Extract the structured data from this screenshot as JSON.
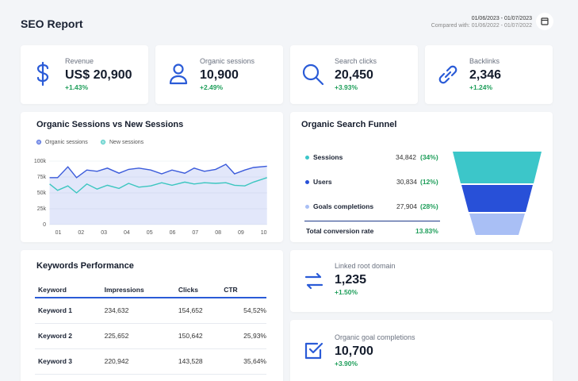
{
  "header": {
    "title": "SEO Report",
    "date_range": "01/06/2023 - 01/07/2023",
    "compared": "Compared with: 01/06/2022 - 01/07/2022"
  },
  "kpis": [
    {
      "label": "Revenue",
      "value": "US$ 20,900",
      "change": "+1.43%"
    },
    {
      "label": "Organic sessions",
      "value": "10,900",
      "change": "+2.49%"
    },
    {
      "label": "Search clicks",
      "value": "20,450",
      "change": "+3.93%"
    },
    {
      "label": "Backlinks",
      "value": "2,346",
      "change": "+1.24%"
    }
  ],
  "chart_data": {
    "type": "line",
    "title": "Organic Sessions vs New Sessions",
    "x": [
      0.62,
      0.97,
      1.42,
      1.8,
      2.25,
      2.7,
      3.15,
      3.66,
      4.08,
      4.53,
      5.05,
      5.53,
      5.98,
      6.54,
      6.95,
      7.4,
      7.89,
      8.34,
      8.72,
      9.17,
      9.55,
      10.14
    ],
    "series": [
      {
        "name": "Organic sessions",
        "color": "#3b5bdb",
        "area": true,
        "values": [
          74000,
          74000,
          91000,
          74000,
          86000,
          84000,
          89000,
          81000,
          87000,
          89000,
          86000,
          80000,
          86000,
          81000,
          89000,
          84000,
          87000,
          95000,
          80000,
          86000,
          90000,
          92000
        ]
      },
      {
        "name": "New sessions",
        "color": "#3cc6c0",
        "values": [
          64000,
          54000,
          61000,
          50000,
          64000,
          56000,
          62000,
          57000,
          65000,
          59000,
          61000,
          66000,
          62000,
          67000,
          64000,
          66000,
          65000,
          66000,
          62000,
          61000,
          67000,
          74000
        ]
      }
    ],
    "xlim": [
      0.6,
      10.15
    ],
    "xticks": [
      {
        "value": 1,
        "label": "01"
      },
      {
        "value": 2,
        "label": "02"
      },
      {
        "value": 3,
        "label": "03"
      },
      {
        "value": 4,
        "label": "04"
      },
      {
        "value": 5,
        "label": "05"
      },
      {
        "value": 6,
        "label": "06"
      },
      {
        "value": 7,
        "label": "07"
      },
      {
        "value": 8,
        "label": "08"
      },
      {
        "value": 9,
        "label": "09"
      },
      {
        "value": 10,
        "label": "10"
      }
    ],
    "ylim": [
      0,
      100000
    ],
    "yticks": [
      0,
      {
        "value": 25000,
        "label": "25k"
      },
      {
        "value": 50000,
        "label": "50k"
      },
      {
        "value": 75000,
        "label": "75k"
      },
      {
        "value": 100000,
        "label": "100k"
      }
    ],
    "grid": true
  },
  "funnel": {
    "title": "Organic Search Funnel",
    "stages": [
      {
        "label": "Sessions",
        "value": "34,842",
        "percent": "(34%)",
        "color": "#3cc6c9"
      },
      {
        "label": "Users",
        "value": "30,834",
        "percent": "(12%)",
        "color": "#2850d8"
      },
      {
        "label": "Goals completions",
        "value": "27,904",
        "percent": "(28%)",
        "color": "#a9bff5"
      }
    ],
    "total_label": "Total conversion rate",
    "total_value": "13.83%"
  },
  "table": {
    "title": "Keywords Performance",
    "columns": [
      "Keyword",
      "Impressions",
      "Clicks",
      "CTR"
    ],
    "rows": [
      [
        "Keyword 1",
        "234,632",
        "154,652",
        "54,52%"
      ],
      [
        "Keyword 2",
        "225,652",
        "150,642",
        "25,93%"
      ],
      [
        "Keyword 3",
        "220,942",
        "143,528",
        "35,64%"
      ]
    ]
  },
  "cards": [
    {
      "label": "Linked root domain",
      "value": "1,235",
      "change": "+1.50%"
    },
    {
      "label": "Organic goal completions",
      "value": "10,700",
      "change": "+3.90%"
    }
  ]
}
